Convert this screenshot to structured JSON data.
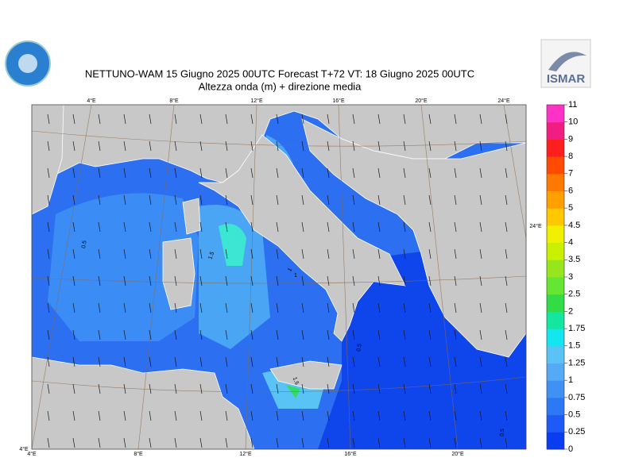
{
  "header": {
    "title": "NETTUNO-WAM  15   Giugno  2025 00UTC Forecast T+72 VT: 18   Giugno  2025 00UTC",
    "subtitle": "Altezza onda (m) + direzione media",
    "logo_right": "ISMAR"
  },
  "map": {
    "top_lon_labels": [
      "4°E",
      "8°E",
      "12°E",
      "16°E",
      "20°E",
      "24°E"
    ],
    "bottom_lon_labels": [
      "4°E",
      "8°E",
      "12°E",
      "16°E",
      "20°E"
    ],
    "corner_label": "4°E",
    "right_label": "24°E",
    "contour_labels": [
      "0.5",
      "1.5",
      "1",
      "1",
      "1.5",
      "0.5",
      "0.5"
    ]
  },
  "colorbar": {
    "labels": [
      "0",
      "0.25",
      "0.5",
      "0.75",
      "1",
      "1.25",
      "1.5",
      "1.75",
      "2",
      "2.5",
      "3",
      "3.5",
      "4",
      "4.5",
      "5",
      "6",
      "7",
      "8",
      "9",
      "10",
      "11"
    ],
    "colors": [
      "#0a3cf0",
      "#1e5af5",
      "#2d78f5",
      "#4191f5",
      "#55aaf5",
      "#5ac3f5",
      "#14e6f0",
      "#14e6a0",
      "#32dc46",
      "#64e632",
      "#96e61e",
      "#c8f000",
      "#f0f000",
      "#ffc800",
      "#ffa000",
      "#ff7800",
      "#ff4b00",
      "#ff1e1e",
      "#f01e82",
      "#ff32c8"
    ]
  }
}
